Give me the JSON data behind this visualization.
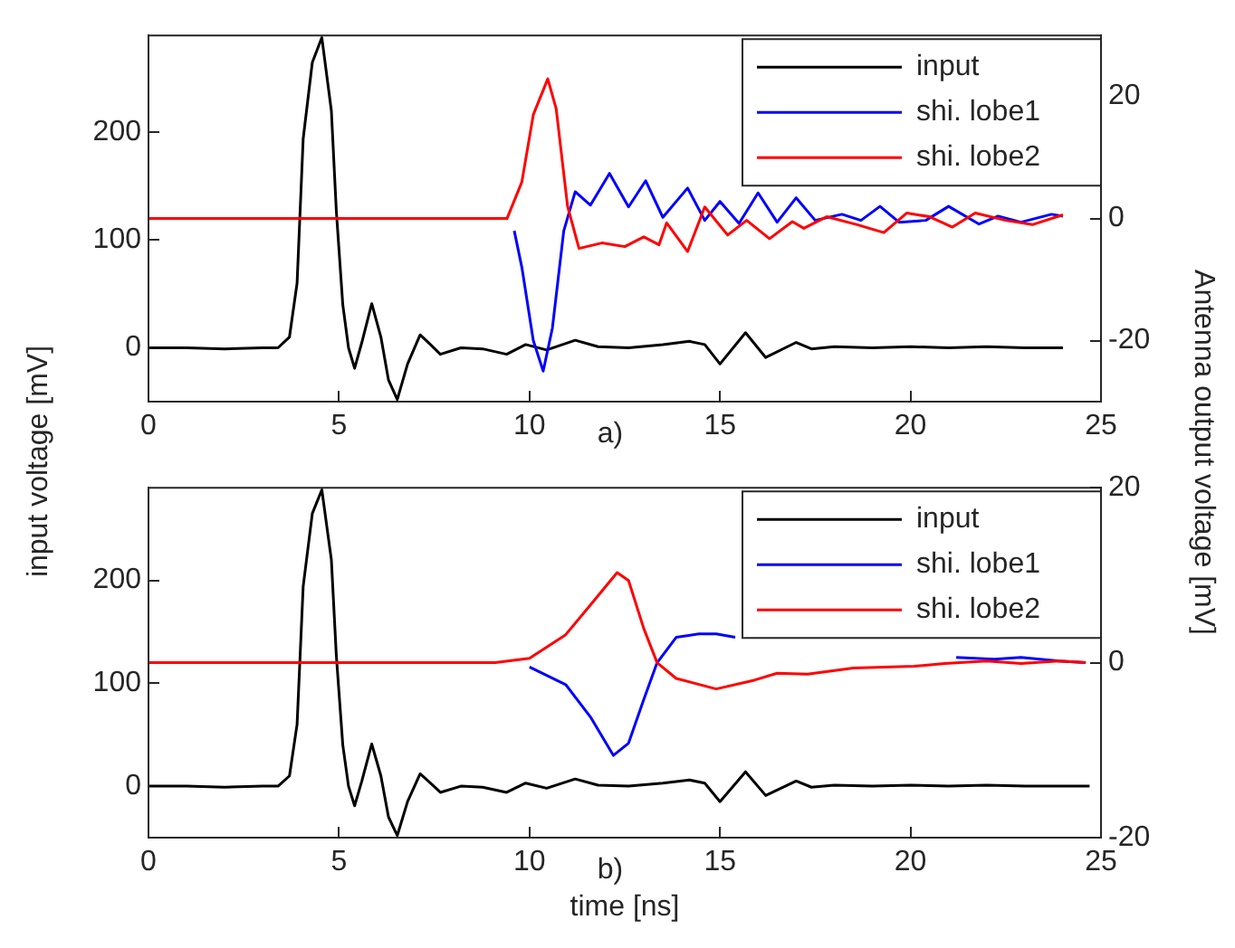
{
  "chart_data": [
    {
      "type": "line",
      "ylabel": "input voltage [mV]",
      "y2label": "Antenna output voltage [mV]",
      "annotations": [
        "a)"
      ],
      "xlim": [
        0,
        25
      ],
      "xticks": [
        0,
        5,
        10,
        15,
        20,
        25
      ],
      "ylim": [
        -50,
        290
      ],
      "yticks": [
        0,
        100,
        200
      ],
      "y2lim": [
        -30,
        30
      ],
      "y2ticks": [
        -20,
        0,
        20
      ],
      "grid": false,
      "legend": "top right",
      "marker": "none",
      "series": [
        {
          "name": "input",
          "color": "#000000",
          "x": [
            0,
            1,
            2,
            3,
            3.4,
            3.7,
            3.9,
            4.06,
            4.3,
            4.55,
            4.8,
            4.93,
            5.1,
            5.25,
            5.41,
            5.6,
            5.86,
            6.1,
            6.3,
            6.53,
            6.8,
            7.13,
            7.4,
            7.66,
            8.2,
            8.77,
            9.4,
            9.9,
            10.45,
            11.2,
            11.8,
            12.6,
            13.5,
            14.2,
            14.6,
            15,
            15.67,
            16.2,
            17,
            17.4,
            18,
            19,
            20,
            21,
            22,
            23,
            24
          ],
          "values": [
            0,
            0,
            -1,
            0,
            0,
            10,
            60,
            194,
            265,
            288,
            220,
            127,
            40,
            0,
            -19,
            5,
            41,
            10,
            -30,
            -48,
            -15,
            12,
            3,
            -6,
            0,
            -1,
            -6,
            3,
            -2,
            7,
            1,
            0,
            3,
            6,
            3,
            -15,
            14,
            -9,
            5,
            -1,
            1,
            0,
            1,
            0,
            1,
            0,
            0
          ]
        },
        {
          "name": "shi. lobe1",
          "color": "#0000ff",
          "axis": "y2",
          "x": [
            9.6,
            9.8,
            10.1,
            10.36,
            10.6,
            10.9,
            11.2,
            11.6,
            12.1,
            12.6,
            13.05,
            13.5,
            14.15,
            14.6,
            15,
            15.5,
            16,
            16.5,
            17,
            17.5,
            18.2,
            18.7,
            19.2,
            19.7,
            20.4,
            21,
            21.8,
            22.3,
            22.9,
            23.7,
            24
          ],
          "values": [
            -2,
            -8,
            -20,
            -25,
            -18,
            -2,
            4.4,
            2.2,
            7.4,
            1.9,
            6.2,
            0.2,
            5,
            -0.3,
            2.8,
            -0.8,
            4.2,
            -0.6,
            3.4,
            -0.3,
            0.7,
            -0.3,
            2,
            -0.6,
            -0.3,
            2,
            -0.9,
            0.4,
            -0.6,
            0.7,
            0.4
          ]
        },
        {
          "name": "shi. lobe2",
          "color": "#ff0000",
          "axis": "y2",
          "x": [
            0,
            2,
            4,
            6,
            8,
            9.41,
            9.8,
            10.1,
            10.48,
            10.7,
            11,
            11.3,
            11.9,
            12.5,
            13,
            13.4,
            13.6,
            14.15,
            14.6,
            15.2,
            15.7,
            16.3,
            16.9,
            17.2,
            17.8,
            18.6,
            19.3,
            19.9,
            20.5,
            21.1,
            21.7,
            22.5,
            23.2,
            24
          ],
          "values": [
            0,
            0,
            0,
            0,
            0,
            0,
            6,
            17,
            22.9,
            18,
            2,
            -4.9,
            -4,
            -4.6,
            -3,
            -4.3,
            -0.7,
            -5.4,
            1.9,
            -2.7,
            -0.3,
            -3.3,
            -0.5,
            -1.6,
            0.3,
            -1,
            -2.3,
            0.9,
            0.3,
            -1.4,
            0.9,
            -0.3,
            -1,
            0.6
          ]
        }
      ]
    },
    {
      "type": "line",
      "xlabel": "time [ns]",
      "annotations": [
        "b)"
      ],
      "xlim": [
        0,
        25
      ],
      "xticks": [
        0,
        5,
        10,
        15,
        20,
        25
      ],
      "ylim": [
        -50,
        290
      ],
      "yticks": [
        0,
        100,
        200
      ],
      "y2lim": [
        -20,
        20
      ],
      "y2ticks": [
        -20,
        0,
        20
      ],
      "grid": false,
      "legend": "top right",
      "marker": "none",
      "series": [
        {
          "name": "input",
          "color": "#000000",
          "x": [
            0,
            1,
            2,
            3,
            3.4,
            3.7,
            3.9,
            4.06,
            4.3,
            4.55,
            4.8,
            4.93,
            5.1,
            5.25,
            5.41,
            5.6,
            5.86,
            6.1,
            6.3,
            6.53,
            6.8,
            7.13,
            7.4,
            7.66,
            8.2,
            8.77,
            9.4,
            9.9,
            10.45,
            11.2,
            11.8,
            12.6,
            13.5,
            14.2,
            14.6,
            15,
            15.67,
            16.2,
            17,
            17.4,
            18,
            19,
            20,
            21,
            22,
            23,
            24,
            24.7
          ],
          "values": [
            0,
            0,
            -1,
            0,
            0,
            10,
            60,
            194,
            265,
            288,
            220,
            127,
            40,
            0,
            -19,
            5,
            41,
            10,
            -30,
            -48,
            -15,
            12,
            3,
            -6,
            0,
            -1,
            -6,
            3,
            -2,
            7,
            1,
            0,
            3,
            6,
            3,
            -15,
            14,
            -9,
            5,
            -1,
            1,
            0,
            1,
            0,
            1,
            0,
            0,
            0
          ]
        },
        {
          "name": "shi. lobe1",
          "color": "#0000ff",
          "axis": "y2",
          "x": [
            10,
            10.95,
            11.6,
            12.2,
            12.6,
            13,
            13.35,
            13.85,
            14.45,
            14.9,
            15.4,
            17,
            19,
            21.2,
            22.2,
            22.9,
            23.9,
            24.6
          ],
          "values": [
            -0.5,
            -2.5,
            -6.2,
            -10.6,
            -9.2,
            -4.2,
            0,
            2.9,
            3.3,
            3.3,
            2.9,
            null,
            null,
            0.6,
            0.4,
            0.6,
            0.2,
            0
          ]
        },
        {
          "name": "shi. lobe2",
          "color": "#ff0000",
          "axis": "y2",
          "x": [
            0,
            2,
            4,
            6,
            8,
            9.1,
            10,
            10.95,
            11.6,
            12.3,
            12.6,
            13,
            13.35,
            13.85,
            14.9,
            15.9,
            16.5,
            17.3,
            18.5,
            20.1,
            20.9,
            22,
            22.9,
            23.9,
            24.6
          ],
          "values": [
            0,
            0,
            0,
            0,
            0,
            0,
            0.5,
            3.2,
            6.6,
            10.3,
            9.4,
            3.9,
            0,
            -1.8,
            -3,
            -2,
            -1.2,
            -1.3,
            -0.6,
            -0.4,
            -0.1,
            0.2,
            -0.1,
            0.2,
            0
          ]
        }
      ]
    }
  ]
}
